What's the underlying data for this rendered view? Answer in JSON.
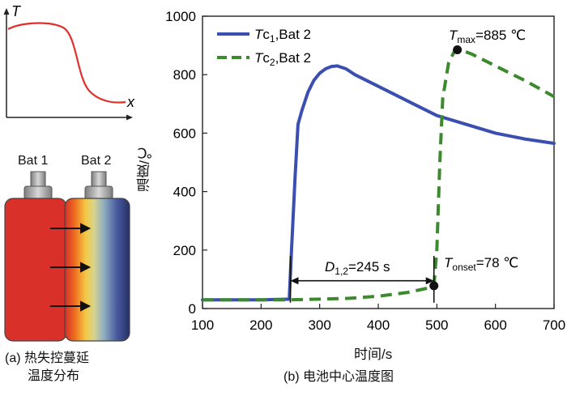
{
  "panel_a": {
    "curve_axis_y": "T",
    "curve_axis_x": "x",
    "bat1_label": "Bat 1",
    "bat2_label": "Bat 2",
    "caption_line1": "(a) 热失控蔓延",
    "caption_line2": "温度分布",
    "colors": {
      "curve": "#e0302a",
      "bat1": "#d9302a"
    }
  },
  "panel_b": {
    "caption": "(b) 电池中心温度图",
    "colors": {
      "series1": "#3b4fb0",
      "series2": "#3c8a2e"
    }
  },
  "chart_data": {
    "type": "line",
    "xlabel": "时间/s",
    "ylabel": "温度/℃",
    "xlim": [
      100,
      700
    ],
    "ylim": [
      0,
      1000
    ],
    "xticks": [
      100,
      200,
      300,
      400,
      500,
      600,
      700
    ],
    "yticks": [
      0,
      200,
      400,
      600,
      800,
      1000
    ],
    "grid": false,
    "legend_position": "top-left",
    "series": [
      {
        "name_base": "Tc",
        "name_sub": "1",
        "name_rest": ",Bat 2",
        "style": "solid",
        "x": [
          100,
          200,
          248,
          252,
          258,
          263,
          270,
          280,
          290,
          300,
          310,
          320,
          330,
          345,
          360,
          400,
          450,
          500,
          550,
          600,
          650,
          700
        ],
        "y": [
          30,
          30,
          32,
          200,
          450,
          630,
          680,
          740,
          780,
          805,
          820,
          828,
          830,
          820,
          800,
          760,
          710,
          660,
          630,
          600,
          580,
          565
        ]
      },
      {
        "name_base": "Tc",
        "name_sub": "2",
        "name_rest": ",Bat 2",
        "style": "dashed",
        "x": [
          100,
          200,
          250,
          300,
          350,
          400,
          450,
          480,
          495,
          500,
          505,
          510,
          520,
          530,
          540,
          560,
          600,
          650,
          700
        ],
        "y": [
          30,
          30,
          30,
          32,
          35,
          42,
          55,
          68,
          78,
          200,
          500,
          720,
          840,
          880,
          885,
          870,
          830,
          780,
          725
        ]
      }
    ],
    "annotations": {
      "tmax_label_base": "T",
      "tmax_label_sub": "max",
      "tmax_label_rest": "=885 ℃",
      "tmax_point": [
        535,
        885
      ],
      "tonset_label_base": "T",
      "tonset_label_sub": "onset",
      "tonset_label_rest": "=78 ℃",
      "tonset_point": [
        495,
        78
      ],
      "d_label_base": "D",
      "d_label_sub": "1,2",
      "d_label_rest": "=245 s",
      "d_span": [
        250,
        495
      ],
      "d_y": 95
    }
  }
}
